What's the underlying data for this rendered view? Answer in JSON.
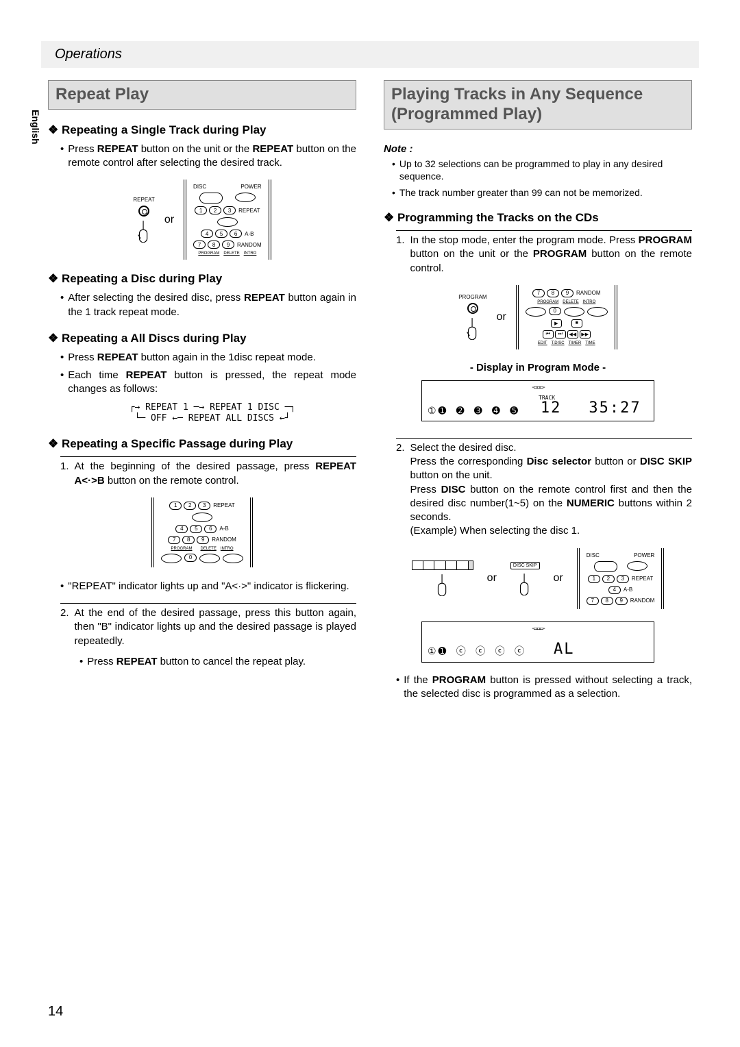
{
  "header": "Operations",
  "lang_tab": "English",
  "page_number": "14",
  "left": {
    "section_title": "Repeat Play",
    "h1": "Repeating a Single Track during Play",
    "b1": "Press <b>REPEAT</b> button on the unit or the <b>REPEAT</b> button on the remote control after selecting the desired track.",
    "or": "or",
    "repeat_label": "REPEAT",
    "h2": "Repeating a Disc during Play",
    "b2": "After selecting the desired disc, press <b>REPEAT</b> button again in the 1 track repeat mode.",
    "h3": "Repeating a All Discs during Play",
    "b3": "Press <b>REPEAT</b> button again in the 1disc repeat mode.",
    "b4": "Each time <b>REPEAT</b> button is pressed, the repeat mode changes as follows:",
    "cycle_l1": "┌→ REPEAT 1 ─→ REPEAT 1 DISC ─┐",
    "cycle_l2": "└─ OFF ←─ REPEAT ALL DISCS ←┘",
    "h4": "Repeating a Specific Passage during Play",
    "n1": "At the beginning of the desired passage, press <b>REPEAT A<·>B</b> button on the remote control.",
    "b5": "\"REPEAT\" indicator lights up and \"A<·>\" indicator is flickering.",
    "n2": "At the end of the desired passage, press this button again, then \"B\" indicator lights up and the desired passage is played repeatedly.",
    "b6": "Press <b>REPEAT</b> button to cancel the repeat play."
  },
  "right": {
    "section_title": "Playing Tracks in Any Sequence (Programmed Play)",
    "note_title": "Note :",
    "note1": "Up to 32 selections can be programmed to play in any desired sequence.",
    "note2": "The track number greater than 99 can not be memorized.",
    "h1": "Programming the Tracks on the CDs",
    "n1": "In the stop mode, enter the program mode. Press <b>PROGRAM</b> button on the unit or the <b>PROGRAM</b> button on the remote control.",
    "or": "or",
    "program_label": "PROGRAM",
    "display_caption": "- Display in Program Mode -",
    "disp1_discs": "①➊ ➋ ➌ ➍ ➎",
    "disp1_track_lbl": "TRACK",
    "disp1_track": "12",
    "disp1_time": "35:27",
    "n2a": "Select the desired disc.",
    "n2b": "Press the corresponding <b>Disc selector</b> button or <b>DISC SKIP</b> button on the unit.",
    "n2c": "Press <b>DISC</b> button on the remote control first and then the desired disc number(1~5) on the <b>NUMERIC</b> buttons within 2 seconds.",
    "n2d": "(Example) When selecting the disc 1.",
    "disc_skip": "DISC SKIP",
    "disp2_discs": "①➊ ⓒ ⓒ ⓒ ⓒ",
    "disp2_val": "AL",
    "b1": "If the <b>PROGRAM</b> button is pressed without selecting a track, the selected disc is programmed as a selection."
  },
  "remote_labels": {
    "disc": "DISC",
    "power": "POWER",
    "repeat": "REPEAT",
    "ab": "A-B",
    "random": "RANDOM",
    "program": "PROGRAM",
    "delete": "DELETE",
    "intro": "INTRO",
    "edit": "EDIT",
    "tdisc": "T.DISC",
    "timer": "TIMER",
    "time": "TIME"
  }
}
